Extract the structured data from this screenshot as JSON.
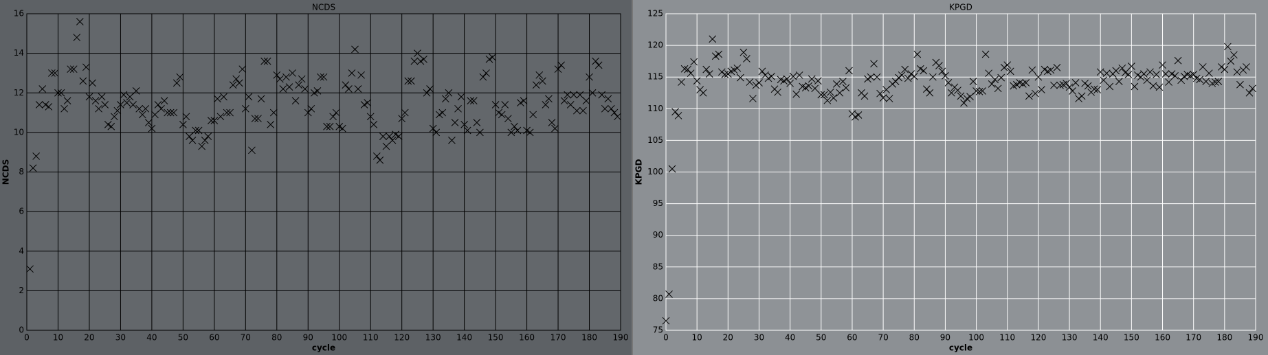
{
  "chart_data": [
    {
      "type": "scatter",
      "title": "NCDS",
      "x_label": "cycle",
      "y_label": "NCDS",
      "color": "#000000",
      "grid": true,
      "grid_color": "#000000",
      "background": "#63676b",
      "panel": "#5d6165",
      "xlim": [
        0,
        190
      ],
      "xticks": [
        0,
        10,
        20,
        30,
        40,
        50,
        60,
        70,
        80,
        90,
        100,
        110,
        120,
        130,
        140,
        150,
        160,
        170,
        180,
        190
      ],
      "ylim": [
        0,
        16
      ],
      "yticks": [
        0,
        2,
        4,
        6,
        8,
        10,
        12,
        14,
        16
      ],
      "x": [
        1,
        2,
        3,
        4,
        5,
        6,
        7,
        8,
        9,
        10,
        11,
        12,
        13,
        14,
        15,
        16,
        17,
        18,
        19,
        20,
        21,
        22,
        23,
        24,
        25,
        26,
        27,
        28,
        29,
        30,
        31,
        32,
        33,
        34,
        35,
        36,
        37,
        38,
        39,
        40,
        41,
        42,
        43,
        44,
        45,
        46,
        47,
        48,
        49,
        50,
        51,
        52,
        53,
        54,
        55,
        56,
        57,
        58,
        59,
        60,
        61,
        62,
        63,
        64,
        65,
        66,
        67,
        68,
        69,
        70,
        71,
        72,
        73,
        74,
        75,
        76,
        77,
        78,
        79,
        80,
        81,
        82,
        83,
        84,
        85,
        86,
        87,
        88,
        89,
        90,
        91,
        92,
        93,
        94,
        95,
        96,
        97,
        98,
        99,
        100,
        101,
        102,
        103,
        104,
        105,
        106,
        107,
        108,
        109,
        110,
        111,
        112,
        113,
        114,
        115,
        116,
        117,
        118,
        119,
        120,
        121,
        122,
        123,
        124,
        125,
        126,
        127,
        128,
        129,
        130,
        131,
        132,
        133,
        134,
        135,
        136,
        137,
        138,
        139,
        140,
        141,
        142,
        143,
        144,
        145,
        146,
        147,
        148,
        149,
        150,
        151,
        152,
        153,
        154,
        155,
        156,
        157,
        158,
        159,
        160,
        161,
        162,
        163,
        164,
        165,
        166,
        167,
        168,
        169,
        170,
        171,
        172,
        173,
        174,
        175,
        176,
        177,
        178,
        179,
        180,
        181,
        182,
        183,
        184,
        185,
        186,
        187,
        188,
        189
      ],
      "values": [
        3.1,
        8.2,
        8.8,
        11.4,
        12.2,
        11.4,
        11.3,
        13.0,
        13.0,
        12.0,
        12.0,
        11.2,
        11.6,
        13.2,
        13.2,
        14.8,
        15.6,
        12.6,
        13.3,
        11.8,
        12.5,
        11.6,
        11.2,
        11.8,
        11.4,
        10.4,
        10.3,
        10.8,
        11.1,
        11.4,
        11.9,
        11.5,
        11.8,
        11.4,
        12.1,
        11.2,
        10.9,
        11.2,
        10.5,
        10.2,
        10.9,
        11.4,
        11.2,
        11.6,
        11.0,
        11.0,
        11.0,
        12.5,
        12.8,
        10.4,
        10.8,
        9.8,
        9.6,
        10.1,
        10.1,
        9.3,
        9.6,
        9.8,
        10.6,
        10.6,
        11.7,
        10.8,
        11.8,
        11.0,
        11.0,
        12.4,
        12.7,
        12.5,
        13.2,
        11.2,
        11.8,
        9.1,
        10.7,
        10.7,
        11.7,
        13.6,
        13.6,
        10.4,
        11.0,
        12.9,
        12.7,
        12.2,
        12.8,
        12.3,
        13.0,
        11.6,
        12.4,
        12.7,
        12.2,
        11.0,
        11.2,
        12.0,
        12.1,
        12.8,
        12.8,
        10.3,
        10.3,
        10.8,
        11.0,
        10.3,
        10.2,
        12.4,
        12.2,
        13.0,
        14.2,
        12.2,
        12.9,
        11.4,
        11.5,
        10.8,
        10.4,
        8.8,
        8.6,
        9.8,
        9.3,
        9.8,
        9.6,
        9.9,
        9.8,
        10.7,
        11.0,
        12.6,
        12.6,
        13.6,
        14.0,
        13.6,
        13.7,
        12.0,
        12.2,
        10.2,
        10.0,
        10.9,
        11.0,
        11.7,
        12.0,
        9.6,
        10.5,
        11.2,
        11.8,
        10.4,
        10.1,
        11.6,
        11.6,
        10.5,
        10.0,
        12.8,
        13.0,
        13.7,
        13.8,
        11.4,
        11.0,
        10.9,
        11.4,
        10.7,
        10.0,
        10.3,
        10.1,
        11.5,
        11.6,
        10.1,
        10.0,
        10.9,
        12.4,
        12.9,
        12.6,
        11.4,
        11.7,
        10.5,
        10.2,
        13.2,
        13.4,
        11.6,
        11.9,
        11.4,
        11.9,
        11.1,
        11.9,
        11.1,
        11.6,
        12.8,
        12.0,
        13.6,
        13.4,
        11.9,
        11.2,
        11.7,
        11.2,
        11.0,
        10.8
      ]
    },
    {
      "type": "scatter",
      "title": "KPGD",
      "x_label": "cycle",
      "y_label": "KPGD",
      "color": "#000000",
      "grid": true,
      "grid_color": "#ffffff",
      "background": "#8f9397",
      "panel": "#8c9094",
      "xlim": [
        0,
        190
      ],
      "xticks": [
        0,
        10,
        20,
        30,
        40,
        50,
        60,
        70,
        80,
        90,
        100,
        110,
        120,
        130,
        140,
        150,
        160,
        170,
        180,
        190
      ],
      "ylim": [
        75,
        125
      ],
      "yticks": [
        75,
        80,
        85,
        90,
        95,
        100,
        105,
        110,
        115,
        120,
        125
      ],
      "x": [
        0,
        1,
        2,
        3,
        4,
        5,
        6,
        7,
        8,
        9,
        10,
        11,
        12,
        13,
        14,
        15,
        16,
        17,
        18,
        19,
        20,
        21,
        22,
        23,
        24,
        25,
        26,
        27,
        28,
        29,
        30,
        31,
        32,
        33,
        34,
        35,
        36,
        37,
        38,
        39,
        40,
        41,
        42,
        43,
        44,
        45,
        46,
        47,
        48,
        49,
        50,
        51,
        52,
        53,
        54,
        55,
        56,
        57,
        58,
        59,
        60,
        61,
        62,
        63,
        64,
        65,
        66,
        67,
        68,
        69,
        70,
        71,
        72,
        73,
        74,
        75,
        76,
        77,
        78,
        79,
        80,
        81,
        82,
        83,
        84,
        85,
        86,
        87,
        88,
        89,
        90,
        91,
        92,
        93,
        94,
        95,
        96,
        97,
        98,
        99,
        100,
        101,
        102,
        103,
        104,
        105,
        106,
        107,
        108,
        109,
        110,
        111,
        112,
        113,
        114,
        115,
        116,
        117,
        118,
        119,
        120,
        121,
        122,
        123,
        124,
        125,
        126,
        127,
        128,
        129,
        130,
        131,
        132,
        133,
        134,
        135,
        136,
        137,
        138,
        139,
        140,
        141,
        142,
        143,
        144,
        145,
        146,
        147,
        148,
        149,
        150,
        151,
        152,
        153,
        154,
        155,
        156,
        157,
        158,
        159,
        160,
        161,
        162,
        163,
        164,
        165,
        166,
        167,
        168,
        169,
        170,
        171,
        172,
        173,
        174,
        175,
        176,
        177,
        178,
        179,
        180,
        181,
        182,
        183,
        184,
        185,
        186,
        187,
        188,
        189
      ],
      "values": [
        76.5,
        80.7,
        100.5,
        109.5,
        108.9,
        114.2,
        116.3,
        116.2,
        115.6,
        117.4,
        114.4,
        113.0,
        112.5,
        116.2,
        115.5,
        121.0,
        118.3,
        118.6,
        115.8,
        115.4,
        115.5,
        115.9,
        116.1,
        116.4,
        114.9,
        118.9,
        117.9,
        114.2,
        111.6,
        113.7,
        114.1,
        115.9,
        115.3,
        114.8,
        115.1,
        113.1,
        112.6,
        114.6,
        114.4,
        114.7,
        114.0,
        115.1,
        112.3,
        115.3,
        113.5,
        113.3,
        113.6,
        114.7,
        113.2,
        114.4,
        112.2,
        112.2,
        111.3,
        112.6,
        111.7,
        113.9,
        112.5,
        114.3,
        113.3,
        116.0,
        109.2,
        108.7,
        109.0,
        112.5,
        112.0,
        114.7,
        115.0,
        117.1,
        115.0,
        112.4,
        111.7,
        113.0,
        111.6,
        113.9,
        114.3,
        114.9,
        115.3,
        116.2,
        114.8,
        115.5,
        115.1,
        118.6,
        116.3,
        116.0,
        113.1,
        112.5,
        115.0,
        117.3,
        116.8,
        115.9,
        115.2,
        114.1,
        112.5,
        113.4,
        112.9,
        112.0,
        110.9,
        111.6,
        111.9,
        114.3,
        112.8,
        112.7,
        112.8,
        118.6,
        115.6,
        113.9,
        114.6,
        113.2,
        114.9,
        116.5,
        116.9,
        115.9,
        113.6,
        113.8,
        114.1,
        113.9,
        114.1,
        112.0,
        116.1,
        112.4,
        115.0,
        113.0,
        116.2,
        115.9,
        116.1,
        113.7,
        116.5,
        113.7,
        113.8,
        114.0,
        113.4,
        112.8,
        114.1,
        111.6,
        112.0,
        114.0,
        113.6,
        112.6,
        113.1,
        113.0,
        115.8,
        114.5,
        115.6,
        113.5,
        115.5,
        116.0,
        114.3,
        116.4,
        115.7,
        115.4,
        116.7,
        113.5,
        115.3,
        115.0,
        115.5,
        114.5,
        115.8,
        113.6,
        115.4,
        113.4,
        116.9,
        115.5,
        114.2,
        115.5,
        115.2,
        117.6,
        114.5,
        115.1,
        115.4,
        115.2,
        115.4,
        114.8,
        114.6,
        116.6,
        114.3,
        115.6,
        114.0,
        114.2,
        114.3,
        116.6,
        116.2,
        119.8,
        117.5,
        118.5,
        115.8,
        113.8,
        116.1,
        116.6,
        112.5,
        113.2
      ]
    }
  ]
}
